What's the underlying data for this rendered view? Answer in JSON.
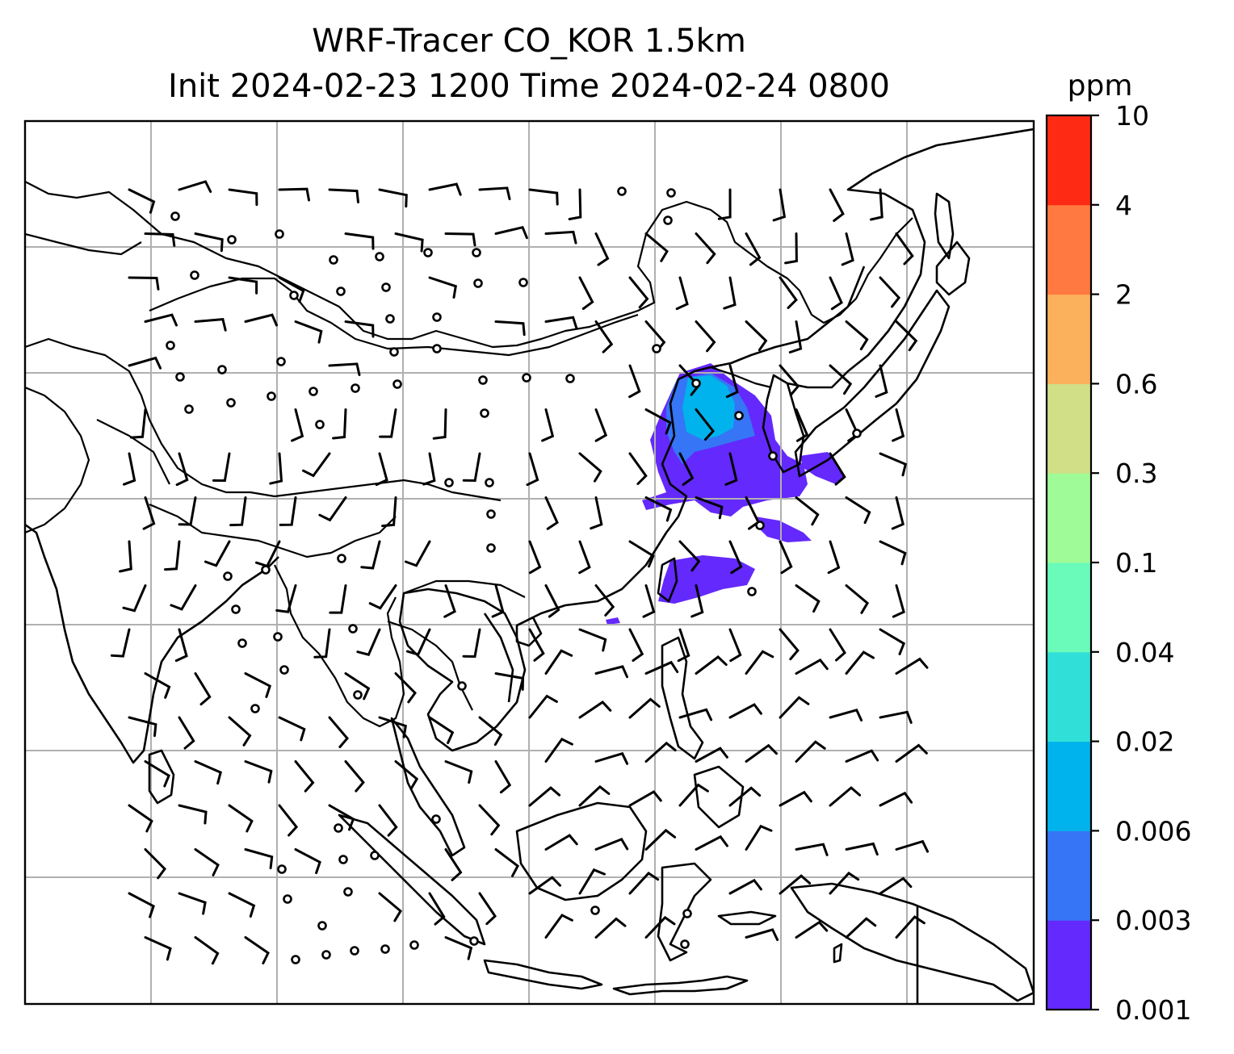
{
  "title_line1": "WRF-Tracer CO_KOR 1.5km",
  "title_line2": "Init 2024-02-23 1200 Time 2024-02-24 0800",
  "colorbar": {
    "unit": "ppm",
    "levels": [
      "0.001",
      "0.003",
      "0.006",
      "0.02",
      "0.04",
      "0.1",
      "0.3",
      "0.6",
      "2",
      "4",
      "10"
    ],
    "colors": [
      "#6429fc",
      "#3575f6",
      "#00b3ec",
      "#30dfd8",
      "#6afbbb",
      "#9ffb97",
      "#d1df87",
      "#fbb05c",
      "#ff7940",
      "#ff2a14"
    ]
  },
  "map": {
    "gridlines": true,
    "coastline_color": "#000000",
    "tracer_color_low": "#6429fc",
    "tracer_color_mid": "#3575f6",
    "tracer_color_high": "#00b3ec"
  }
}
